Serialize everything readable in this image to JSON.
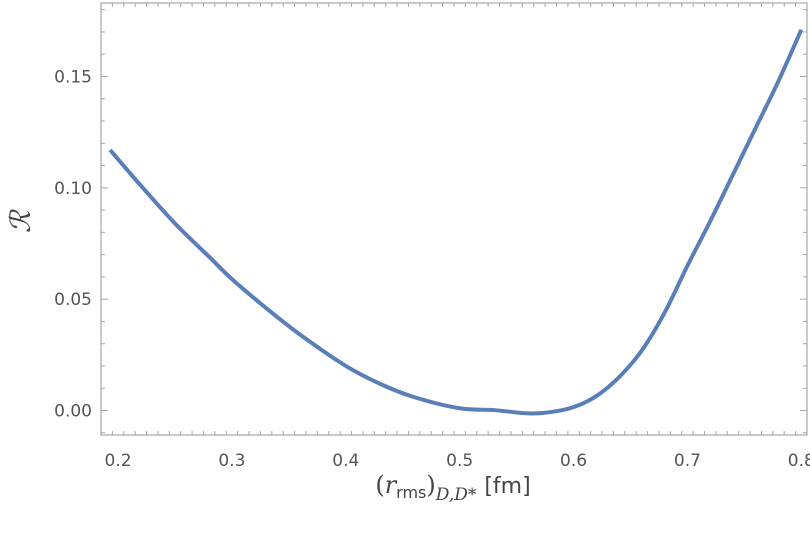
{
  "chart_data": {
    "type": "line",
    "title": "",
    "xlabel": {
      "open_paren": "(",
      "var": "r",
      "sub": "rms",
      "close_paren": ")",
      "outer_sub": "D,D*",
      "unit": "[fm]"
    },
    "ylabel": "ℛ",
    "xlim": [
      0.185,
      0.805
    ],
    "ylim": [
      -0.011,
      0.183
    ],
    "x_ticks": [
      0.2,
      0.3,
      0.4,
      0.5,
      0.6,
      0.7,
      0.8
    ],
    "x_tick_labels": [
      "0.2",
      "0.3",
      "0.4",
      "0.5",
      "0.6",
      "0.7",
      "0.8"
    ],
    "y_ticks": [
      0.0,
      0.05,
      0.1,
      0.15
    ],
    "y_tick_labels": [
      "0.00",
      "0.05",
      "0.10",
      "0.15"
    ],
    "grid": false,
    "frame": "full",
    "series": [
      {
        "color": "#5a7fb8",
        "x": [
          0.193,
          0.22,
          0.25,
          0.28,
          0.3,
          0.33,
          0.36,
          0.4,
          0.43,
          0.46,
          0.5,
          0.53,
          0.56,
          0.58,
          0.6,
          0.62,
          0.64,
          0.66,
          0.68,
          0.7,
          0.72,
          0.74,
          0.76,
          0.78,
          0.8
        ],
        "y": [
          0.117,
          0.101,
          0.084,
          0.069,
          0.059,
          0.046,
          0.034,
          0.02,
          0.012,
          0.006,
          0.001,
          0.0002,
          -0.0013,
          -0.0007,
          0.0015,
          0.0065,
          0.015,
          0.027,
          0.044,
          0.065,
          0.085,
          0.106,
          0.127,
          0.148,
          0.171
        ]
      }
    ]
  }
}
